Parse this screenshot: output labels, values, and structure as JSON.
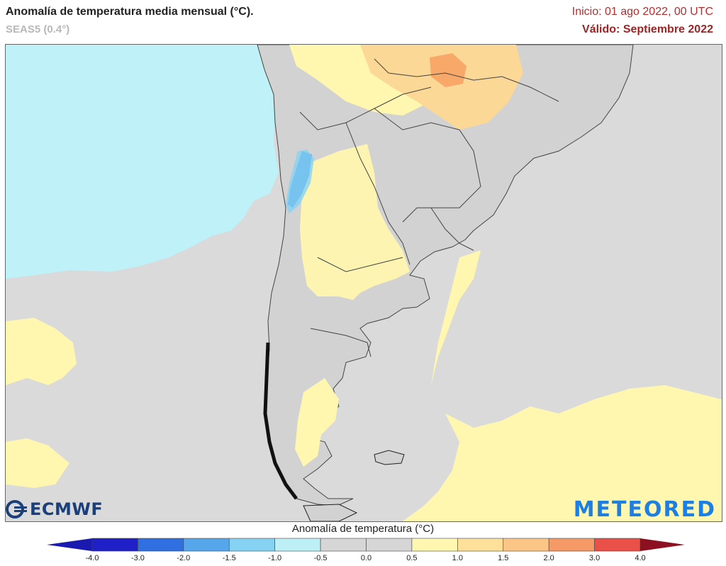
{
  "header": {
    "title": "Anomalía de temperatura media mensual (°C).",
    "subtitle": "SEAS5 (0.4°)",
    "init": "Inicio: 01 ago 2022, 00 UTC",
    "valid": "Válido: Septiembre 2022"
  },
  "legend": {
    "title": "Anomalía de temperatura (°C)",
    "ticks": [
      "-4.0",
      "-3.0",
      "-2.0",
      "-1.5",
      "-1.0",
      "-0.5",
      "0.0",
      "0.5",
      "1.0",
      "1.5",
      "2.0",
      "3.0",
      "4.0"
    ],
    "colors": [
      "#2020c8",
      "#2f6fe0",
      "#55a6ea",
      "#86d2f2",
      "#bdf0f6",
      "#d6d6d6",
      "#d6d6d6",
      "#fff6b0",
      "#fde09a",
      "#fbc585",
      "#f59966",
      "#e85048",
      "#b81a24"
    ],
    "low_arrow": "#1a1ab0",
    "high_arrow": "#8c1020"
  },
  "map": {
    "ocean_color": "#dadada",
    "land_color": "#d2d2d2",
    "pacific_cold_color": "#bff2f8",
    "warm_color": "#fff6b0",
    "warmer_color": "#fcd896",
    "hot_color": "#f8a868",
    "cold_color": "#3b86e6"
  },
  "logos": {
    "left": "ECMWF",
    "right": "METEORED"
  }
}
